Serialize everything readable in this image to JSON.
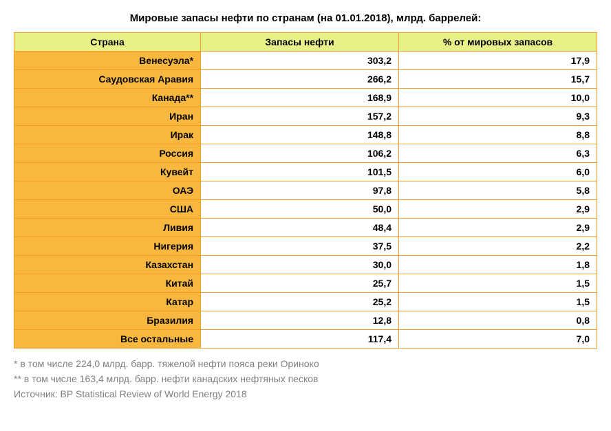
{
  "title": "Мировые запасы нефти по странам (на 01.01.2018), млрд. баррелей:",
  "title_fontsize": 15,
  "title_color": "#000000",
  "table": {
    "border_color": "#f0a020",
    "border_width": "1px",
    "header_bg": "#e8f088",
    "header_color": "#000000",
    "header_fontsize": 14,
    "country_cell_bg": "#f8b840",
    "value_cell_bg": "#ffffff",
    "cell_fontsize": 14,
    "cell_color": "#000000",
    "col_widths": [
      "32%",
      "34%",
      "34%"
    ],
    "columns": [
      "Страна",
      "Запасы нефти",
      "% от мировых запасов"
    ],
    "rows": [
      {
        "country": "Венесуэла*",
        "reserves": "303,2",
        "pct": "17,9"
      },
      {
        "country": "Саудовская Аравия",
        "reserves": "266,2",
        "pct": "15,7"
      },
      {
        "country": "Канада**",
        "reserves": "168,9",
        "pct": "10,0"
      },
      {
        "country": "Иран",
        "reserves": "157,2",
        "pct": "9,3"
      },
      {
        "country": "Ирак",
        "reserves": "148,8",
        "pct": "8,8"
      },
      {
        "country": "Россия",
        "reserves": "106,2",
        "pct": "6,3"
      },
      {
        "country": "Кувейт",
        "reserves": "101,5",
        "pct": "6,0"
      },
      {
        "country": "ОАЭ",
        "reserves": "97,8",
        "pct": "5,8"
      },
      {
        "country": "США",
        "reserves": "50,0",
        "pct": "2,9"
      },
      {
        "country": "Ливия",
        "reserves": "48,4",
        "pct": "2,9"
      },
      {
        "country": "Нигерия",
        "reserves": "37,5",
        "pct": "2,2"
      },
      {
        "country": "Казахстан",
        "reserves": "30,0",
        "pct": "1,8"
      },
      {
        "country": "Китай",
        "reserves": "25,7",
        "pct": "1,5"
      },
      {
        "country": "Катар",
        "reserves": "25,2",
        "pct": "1,5"
      },
      {
        "country": "Бразилия",
        "reserves": "12,8",
        "pct": "0,8"
      },
      {
        "country": "Все остальные",
        "reserves": "117,4",
        "pct": "7,0"
      }
    ]
  },
  "footnotes": {
    "color": "#808080",
    "fontsize": 14,
    "lines": [
      "* в том числе 224,0 млрд. барр. тяжелой нефти пояса реки Ориноко",
      "** в том числе 163,4 млрд. барр. нефти канадских нефтяных песков",
      "Источник: BP Statistical Review of World Energy 2018"
    ]
  }
}
